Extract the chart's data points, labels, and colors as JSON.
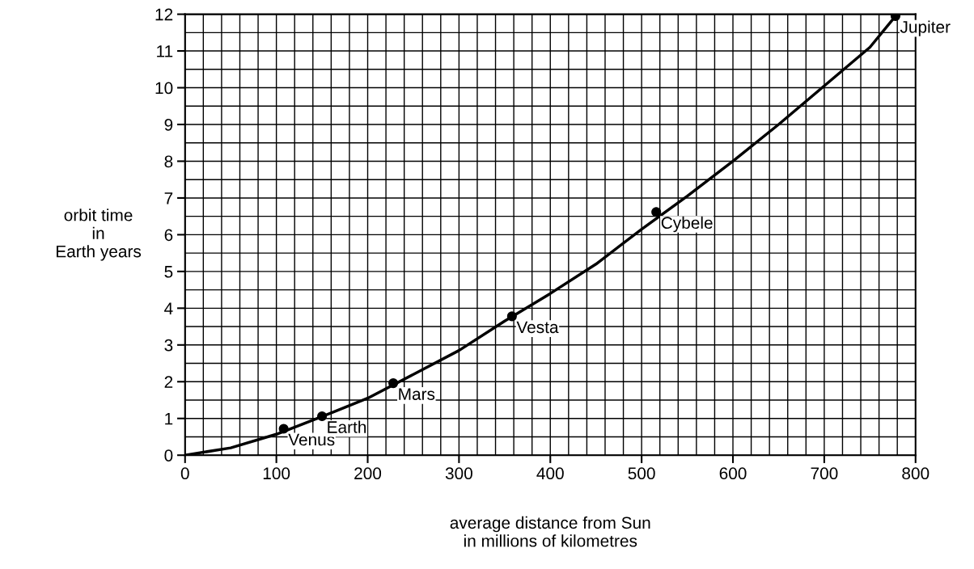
{
  "chart_data": {
    "type": "line",
    "xlabel": "average distance from Sun\nin millions of kilometres",
    "ylabel": "orbit time\nin\nEarth years",
    "series": [
      {
        "color": "#000000",
        "marker": "none",
        "x": [
          0,
          50,
          100,
          150,
          200,
          250,
          300,
          350,
          400,
          450,
          500,
          550,
          600,
          650,
          700,
          750,
          778
        ],
        "values": [
          0,
          0.2,
          0.57,
          1.05,
          1.55,
          2.2,
          2.85,
          3.65,
          4.4,
          5.2,
          6.15,
          7.05,
          8.0,
          9.0,
          10.05,
          11.1,
          11.95
        ]
      },
      {
        "type": "scatter",
        "color": "#000000",
        "marker": "circle",
        "x": [
          108,
          150,
          228,
          358,
          516,
          778
        ],
        "values": [
          0.72,
          1.06,
          1.96,
          3.78,
          6.62,
          11.95
        ]
      }
    ],
    "annotations": [
      {
        "text": "Venus",
        "x": 108,
        "y": 0.72
      },
      {
        "text": "Earth",
        "x": 150,
        "y": 1.06
      },
      {
        "text": "Mars",
        "x": 228,
        "y": 1.96
      },
      {
        "text": "Vesta",
        "x": 358,
        "y": 3.78
      },
      {
        "text": "Cybele",
        "x": 516,
        "y": 6.62
      },
      {
        "text": "Jupiter",
        "x": 778,
        "y": 11.95
      }
    ],
    "xlim": [
      0,
      800
    ],
    "ylim": [
      0,
      12
    ],
    "xticks": [
      0,
      100,
      200,
      300,
      400,
      500,
      600,
      700,
      800,
      {
        "value": 20,
        "label": null
      },
      {
        "value": 40,
        "label": null
      },
      {
        "value": 60,
        "label": null
      },
      {
        "value": 80,
        "label": null
      },
      {
        "value": 120,
        "label": null
      },
      {
        "value": 140,
        "label": null
      },
      {
        "value": 160,
        "label": null
      },
      {
        "value": 180,
        "label": null
      },
      {
        "value": 220,
        "label": null
      },
      {
        "value": 240,
        "label": null
      },
      {
        "value": 260,
        "label": null
      },
      {
        "value": 280,
        "label": null
      },
      {
        "value": 320,
        "label": null
      },
      {
        "value": 340,
        "label": null
      },
      {
        "value": 360,
        "label": null
      },
      {
        "value": 380,
        "label": null
      },
      {
        "value": 420,
        "label": null
      },
      {
        "value": 440,
        "label": null
      },
      {
        "value": 460,
        "label": null
      },
      {
        "value": 480,
        "label": null
      },
      {
        "value": 520,
        "label": null
      },
      {
        "value": 540,
        "label": null
      },
      {
        "value": 560,
        "label": null
      },
      {
        "value": 580,
        "label": null
      },
      {
        "value": 620,
        "label": null
      },
      {
        "value": 640,
        "label": null
      },
      {
        "value": 660,
        "label": null
      },
      {
        "value": 680,
        "label": null
      },
      {
        "value": 720,
        "label": null
      },
      {
        "value": 740,
        "label": null
      },
      {
        "value": 760,
        "label": null
      },
      {
        "value": 780,
        "label": null
      }
    ],
    "yticks": [
      0,
      1,
      2,
      3,
      4,
      5,
      6,
      7,
      8,
      9,
      10,
      11,
      12,
      {
        "value": 0.5,
        "label": null
      },
      {
        "value": 1.5,
        "label": null
      },
      {
        "value": 2.5,
        "label": null
      },
      {
        "value": 3.5,
        "label": null
      },
      {
        "value": 4.5,
        "label": null
      },
      {
        "value": 5.5,
        "label": null
      },
      {
        "value": 6.5,
        "label": null
      },
      {
        "value": 7.5,
        "label": null
      },
      {
        "value": 8.5,
        "label": null
      },
      {
        "value": 9.5,
        "label": null
      },
      {
        "value": 10.5,
        "label": null
      },
      {
        "value": 11.5,
        "label": null
      }
    ],
    "grid": true,
    "line_style": "solid"
  }
}
